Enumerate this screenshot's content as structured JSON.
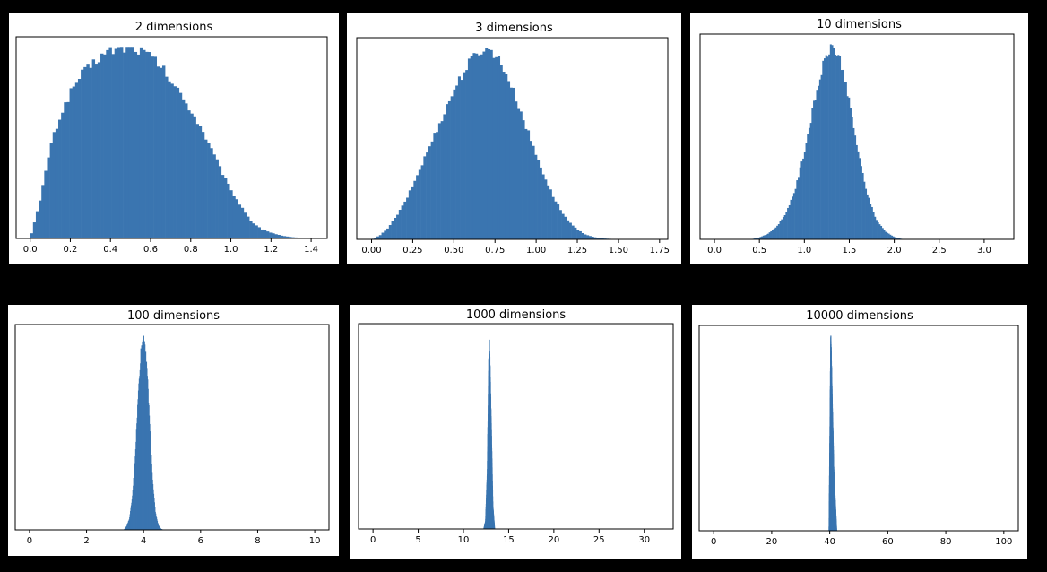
{
  "chart_data": [
    {
      "type": "bar",
      "title": "2 dimensions",
      "xlim": [
        -0.07,
        1.48
      ],
      "xticks": [
        "0.0",
        "0.2",
        "0.4",
        "0.6",
        "0.8",
        "1.0",
        "1.2",
        "1.4"
      ],
      "xtick_values": [
        0.0,
        0.2,
        0.4,
        0.6,
        0.8,
        1.0,
        1.2,
        1.4
      ],
      "peak_x": 0.5,
      "series": [
        {
          "color": "#3a75b0",
          "bins": [
            {
              "x": 0.0,
              "y": 0.0
            },
            {
              "x": 0.05,
              "y": 0.2
            },
            {
              "x": 0.1,
              "y": 0.48
            },
            {
              "x": 0.15,
              "y": 0.64
            },
            {
              "x": 0.2,
              "y": 0.76
            },
            {
              "x": 0.25,
              "y": 0.85
            },
            {
              "x": 0.3,
              "y": 0.9
            },
            {
              "x": 0.35,
              "y": 0.95
            },
            {
              "x": 0.4,
              "y": 0.98
            },
            {
              "x": 0.45,
              "y": 0.99
            },
            {
              "x": 0.5,
              "y": 1.0
            },
            {
              "x": 0.55,
              "y": 0.98
            },
            {
              "x": 0.6,
              "y": 0.95
            },
            {
              "x": 0.65,
              "y": 0.9
            },
            {
              "x": 0.7,
              "y": 0.82
            },
            {
              "x": 0.75,
              "y": 0.75
            },
            {
              "x": 0.8,
              "y": 0.67
            },
            {
              "x": 0.85,
              "y": 0.58
            },
            {
              "x": 0.9,
              "y": 0.47
            },
            {
              "x": 0.95,
              "y": 0.36
            },
            {
              "x": 1.0,
              "y": 0.25
            },
            {
              "x": 1.05,
              "y": 0.17
            },
            {
              "x": 1.1,
              "y": 0.09
            },
            {
              "x": 1.15,
              "y": 0.05
            },
            {
              "x": 1.2,
              "y": 0.03
            },
            {
              "x": 1.25,
              "y": 0.015
            },
            {
              "x": 1.3,
              "y": 0.007
            },
            {
              "x": 1.35,
              "y": 0.003
            },
            {
              "x": 1.4,
              "y": 0.0
            }
          ]
        }
      ]
    },
    {
      "type": "bar",
      "title": "3 dimensions",
      "xlim": [
        -0.09,
        1.8
      ],
      "xticks": [
        "0.00",
        "0.25",
        "0.50",
        "0.75",
        "1.00",
        "1.25",
        "1.50",
        "1.75"
      ],
      "xtick_values": [
        0.0,
        0.25,
        0.5,
        0.75,
        1.0,
        1.25,
        1.5,
        1.75
      ],
      "peak_x": 0.68,
      "series": [
        {
          "color": "#3a75b0",
          "bins": [
            {
              "x": 0.0,
              "y": 0.0
            },
            {
              "x": 0.05,
              "y": 0.02
            },
            {
              "x": 0.1,
              "y": 0.06
            },
            {
              "x": 0.15,
              "y": 0.12
            },
            {
              "x": 0.2,
              "y": 0.19
            },
            {
              "x": 0.25,
              "y": 0.28
            },
            {
              "x": 0.3,
              "y": 0.38
            },
            {
              "x": 0.35,
              "y": 0.48
            },
            {
              "x": 0.4,
              "y": 0.58
            },
            {
              "x": 0.45,
              "y": 0.68
            },
            {
              "x": 0.5,
              "y": 0.78
            },
            {
              "x": 0.55,
              "y": 0.86
            },
            {
              "x": 0.6,
              "y": 0.93
            },
            {
              "x": 0.65,
              "y": 0.98
            },
            {
              "x": 0.7,
              "y": 1.0
            },
            {
              "x": 0.75,
              "y": 0.97
            },
            {
              "x": 0.8,
              "y": 0.9
            },
            {
              "x": 0.85,
              "y": 0.8
            },
            {
              "x": 0.9,
              "y": 0.68
            },
            {
              "x": 0.95,
              "y": 0.56
            },
            {
              "x": 1.0,
              "y": 0.44
            },
            {
              "x": 1.05,
              "y": 0.33
            },
            {
              "x": 1.1,
              "y": 0.23
            },
            {
              "x": 1.15,
              "y": 0.15
            },
            {
              "x": 1.2,
              "y": 0.09
            },
            {
              "x": 1.25,
              "y": 0.05
            },
            {
              "x": 1.3,
              "y": 0.025
            },
            {
              "x": 1.35,
              "y": 0.012
            },
            {
              "x": 1.4,
              "y": 0.005
            },
            {
              "x": 1.5,
              "y": 0.0
            }
          ]
        }
      ]
    },
    {
      "type": "bar",
      "title": "10 dimensions",
      "xlim": [
        -0.16,
        3.33
      ],
      "xticks": [
        "0.0",
        "0.5",
        "1.0",
        "1.5",
        "2.0",
        "2.5",
        "3.0"
      ],
      "xtick_values": [
        0.0,
        0.5,
        1.0,
        1.5,
        2.0,
        2.5,
        3.0
      ],
      "peak_x": 1.3,
      "series": [
        {
          "color": "#3a75b0",
          "bins": [
            {
              "x": 0.4,
              "y": 0.0
            },
            {
              "x": 0.5,
              "y": 0.01
            },
            {
              "x": 0.6,
              "y": 0.03
            },
            {
              "x": 0.7,
              "y": 0.07
            },
            {
              "x": 0.8,
              "y": 0.14
            },
            {
              "x": 0.9,
              "y": 0.26
            },
            {
              "x": 1.0,
              "y": 0.45
            },
            {
              "x": 1.1,
              "y": 0.68
            },
            {
              "x": 1.2,
              "y": 0.88
            },
            {
              "x": 1.3,
              "y": 1.0
            },
            {
              "x": 1.4,
              "y": 0.92
            },
            {
              "x": 1.5,
              "y": 0.7
            },
            {
              "x": 1.6,
              "y": 0.44
            },
            {
              "x": 1.7,
              "y": 0.23
            },
            {
              "x": 1.8,
              "y": 0.1
            },
            {
              "x": 1.9,
              "y": 0.04
            },
            {
              "x": 2.0,
              "y": 0.012
            },
            {
              "x": 2.1,
              "y": 0.0
            }
          ]
        }
      ]
    },
    {
      "type": "bar",
      "title": "100 dimensions",
      "xlim": [
        -0.5,
        10.5
      ],
      "xticks": [
        "0",
        "2",
        "4",
        "6",
        "8",
        "10"
      ],
      "xtick_values": [
        0,
        2,
        4,
        6,
        8,
        10
      ],
      "peak_x": 4.05,
      "series": [
        {
          "color": "#3a75b0",
          "bins": [
            {
              "x": 3.3,
              "y": 0.0
            },
            {
              "x": 3.4,
              "y": 0.02
            },
            {
              "x": 3.5,
              "y": 0.06
            },
            {
              "x": 3.6,
              "y": 0.17
            },
            {
              "x": 3.7,
              "y": 0.38
            },
            {
              "x": 3.8,
              "y": 0.68
            },
            {
              "x": 3.9,
              "y": 0.92
            },
            {
              "x": 4.0,
              "y": 1.0
            },
            {
              "x": 4.1,
              "y": 0.85
            },
            {
              "x": 4.2,
              "y": 0.55
            },
            {
              "x": 4.3,
              "y": 0.26
            },
            {
              "x": 4.4,
              "y": 0.09
            },
            {
              "x": 4.5,
              "y": 0.025
            },
            {
              "x": 4.6,
              "y": 0.005
            },
            {
              "x": 4.7,
              "y": 0.0
            }
          ]
        }
      ]
    },
    {
      "type": "bar",
      "title": "1000 dimensions",
      "xlim": [
        -1.6,
        33.2
      ],
      "xticks": [
        "0",
        "5",
        "10",
        "15",
        "20",
        "25",
        "30"
      ],
      "xtick_values": [
        0,
        5,
        10,
        15,
        20,
        25,
        30
      ],
      "peak_x": 12.9,
      "series": [
        {
          "color": "#3a75b0",
          "bins": [
            {
              "x": 12.2,
              "y": 0.0
            },
            {
              "x": 12.4,
              "y": 0.04
            },
            {
              "x": 12.6,
              "y": 0.3
            },
            {
              "x": 12.8,
              "y": 1.0
            },
            {
              "x": 13.0,
              "y": 0.58
            },
            {
              "x": 13.2,
              "y": 0.12
            },
            {
              "x": 13.4,
              "y": 0.0
            }
          ]
        }
      ]
    },
    {
      "type": "bar",
      "title": "10000 dimensions",
      "xlim": [
        -5,
        105
      ],
      "xticks": [
        "0",
        "20",
        "40",
        "60",
        "80",
        "100"
      ],
      "xtick_values": [
        0,
        20,
        40,
        60,
        80,
        100
      ],
      "peak_x": 40.8,
      "series": [
        {
          "color": "#3a75b0",
          "bins": [
            {
              "x": 39.6,
              "y": 0.0
            },
            {
              "x": 40.2,
              "y": 1.0
            },
            {
              "x": 41.2,
              "y": 0.32
            },
            {
              "x": 42.2,
              "y": 0.0
            }
          ]
        }
      ]
    }
  ]
}
